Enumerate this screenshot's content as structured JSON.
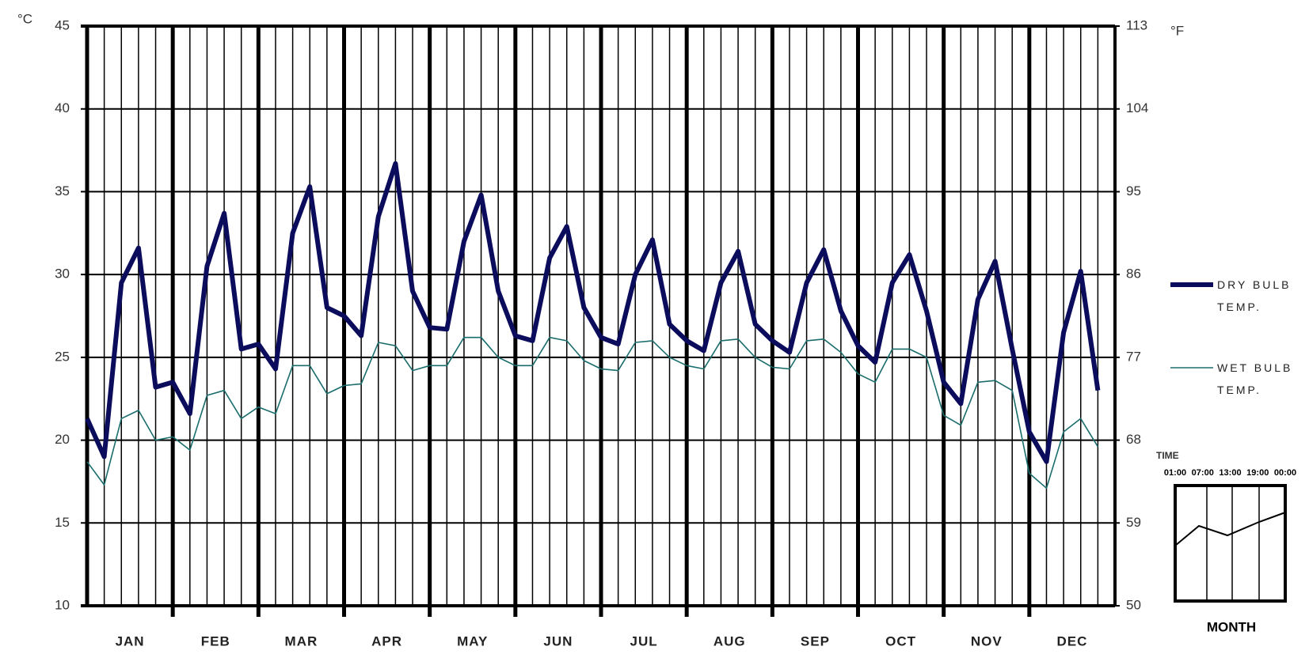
{
  "chart_data": {
    "type": "line",
    "y_unit": "°C",
    "y2_unit": "°F",
    "categories": [
      "JAN",
      "FEB",
      "MAR",
      "APR",
      "MAY",
      "JUN",
      "JUL",
      "AUG",
      "SEP",
      "OCT",
      "NOV",
      "DEC"
    ],
    "series": [
      {
        "name": "DRY BULB TEMP.",
        "color": "#0c0c5c",
        "values": [
          [
            21.3,
            19.0,
            29.5,
            31.6,
            23.2
          ],
          [
            23.5,
            21.6,
            30.5,
            33.7,
            25.5
          ],
          [
            25.8,
            24.3,
            32.5,
            35.3,
            28.0
          ],
          [
            27.5,
            26.3,
            33.5,
            36.7,
            29.0
          ],
          [
            26.8,
            26.7,
            32.0,
            34.8,
            29.0
          ],
          [
            26.3,
            26.0,
            31.0,
            32.9,
            28.0
          ],
          [
            26.2,
            25.8,
            30.0,
            32.1,
            27.0
          ],
          [
            26.0,
            25.4,
            29.5,
            31.4,
            27.0
          ],
          [
            26.0,
            25.3,
            29.5,
            31.5,
            27.8
          ],
          [
            25.7,
            24.7,
            29.5,
            31.2,
            27.8
          ],
          [
            23.5,
            22.2,
            28.5,
            30.8,
            25.5
          ],
          [
            20.5,
            18.7,
            26.5,
            30.2,
            23.0
          ]
        ]
      },
      {
        "name": "WET BULB TEMP.",
        "color": "#1b6d6d",
        "values": [
          [
            18.7,
            17.3,
            21.3,
            21.8,
            20.0
          ],
          [
            20.2,
            19.4,
            22.7,
            23.0,
            21.3
          ],
          [
            22.0,
            21.6,
            24.5,
            24.5,
            22.8
          ],
          [
            23.3,
            23.4,
            25.9,
            25.7,
            24.2
          ],
          [
            24.5,
            24.5,
            26.2,
            26.2,
            25.0
          ],
          [
            24.5,
            24.5,
            26.2,
            26.0,
            24.8
          ],
          [
            24.3,
            24.2,
            25.9,
            26.0,
            25.0
          ],
          [
            24.5,
            24.3,
            26.0,
            26.1,
            25.0
          ],
          [
            24.4,
            24.3,
            26.0,
            26.1,
            25.3
          ],
          [
            24.0,
            23.5,
            25.5,
            25.5,
            25.0
          ],
          [
            21.5,
            20.9,
            23.5,
            23.6,
            23.0
          ],
          [
            18.0,
            17.1,
            20.5,
            21.3,
            19.6
          ]
        ]
      }
    ],
    "ylim": [
      10,
      45
    ],
    "yticks": [
      10,
      15,
      20,
      25,
      30,
      35,
      40,
      45
    ],
    "y2lim": [
      50,
      113
    ],
    "y2ticks": [
      50,
      59,
      68,
      77,
      86,
      95,
      104,
      113
    ],
    "grid": true,
    "inset": {
      "title": "TIME",
      "times": [
        "01:00",
        "07:00",
        "13:00",
        "19:00",
        "00:00"
      ],
      "xlabel": "MONTH"
    }
  }
}
